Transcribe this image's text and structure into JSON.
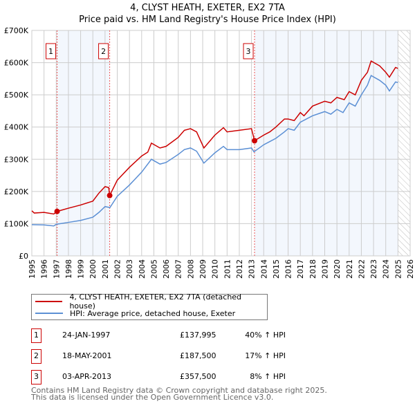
{
  "chart_data": {
    "type": "line",
    "title": "4, CLYST HEATH, EXETER, EX2 7TA",
    "subtitle": "Price paid vs. HM Land Registry's House Price Index (HPI)",
    "xlim": [
      1995,
      2026
    ],
    "ylim": [
      0,
      700000
    ],
    "x_ticks": [
      "1995",
      "1996",
      "1997",
      "1998",
      "1999",
      "2000",
      "2001",
      "2002",
      "2003",
      "2004",
      "2005",
      "2006",
      "2007",
      "2008",
      "2009",
      "2010",
      "2011",
      "2012",
      "2013",
      "2014",
      "2015",
      "2016",
      "2017",
      "2018",
      "2019",
      "2020",
      "2021",
      "2022",
      "2023",
      "2024",
      "2025",
      "2026"
    ],
    "y_ticks": [
      {
        "v": 0,
        "label": "£0"
      },
      {
        "v": 100000,
        "label": "£100K"
      },
      {
        "v": 200000,
        "label": "£200K"
      },
      {
        "v": 300000,
        "label": "£300K"
      },
      {
        "v": 400000,
        "label": "£400K"
      },
      {
        "v": 500000,
        "label": "£500K"
      },
      {
        "v": 600000,
        "label": "£600K"
      },
      {
        "v": 700000,
        "label": "£700K"
      }
    ],
    "grid": true,
    "series": [
      {
        "name": "4, CLYST HEATH, EXETER, EX2 7TA (detached house)",
        "color": "#cc0000",
        "points": [
          [
            1995,
            140
          ],
          [
            1995.2,
            133
          ],
          [
            1996,
            135
          ],
          [
            1996.8,
            130
          ],
          [
            1997.07,
            138
          ],
          [
            1998,
            148
          ],
          [
            1999,
            158
          ],
          [
            2000,
            170
          ],
          [
            2000.5,
            195
          ],
          [
            2001,
            215
          ],
          [
            2001.3,
            212
          ],
          [
            2001.38,
            187.5
          ],
          [
            2002,
            235
          ],
          [
            2003,
            275
          ],
          [
            2004,
            310
          ],
          [
            2004.5,
            322
          ],
          [
            2004.8,
            350
          ],
          [
            2005.5,
            335
          ],
          [
            2006,
            340
          ],
          [
            2007,
            368
          ],
          [
            2007.5,
            390
          ],
          [
            2008,
            395
          ],
          [
            2008.5,
            385
          ],
          [
            2009.1,
            335
          ],
          [
            2010,
            375
          ],
          [
            2010.7,
            398
          ],
          [
            2011,
            385
          ],
          [
            2012,
            390
          ],
          [
            2013,
            395
          ],
          [
            2013.25,
            357.5
          ],
          [
            2014,
            375
          ],
          [
            2014.5,
            385
          ],
          [
            2015,
            400
          ],
          [
            2015.7,
            425
          ],
          [
            2016,
            425
          ],
          [
            2016.5,
            420
          ],
          [
            2017,
            445
          ],
          [
            2017.3,
            435
          ],
          [
            2018,
            465
          ],
          [
            2019,
            480
          ],
          [
            2019.5,
            475
          ],
          [
            2020,
            492
          ],
          [
            2020.6,
            485
          ],
          [
            2021,
            510
          ],
          [
            2021.5,
            500
          ],
          [
            2022,
            545
          ],
          [
            2022.5,
            570
          ],
          [
            2022.8,
            605
          ],
          [
            2023.5,
            590
          ],
          [
            2024,
            570
          ],
          [
            2024.3,
            555
          ],
          [
            2024.8,
            585
          ],
          [
            2025,
            582
          ]
        ]
      },
      {
        "name": "HPI: Average price, detached house, Exeter",
        "color": "#5b8fd4",
        "points": [
          [
            1995,
            97
          ],
          [
            1996,
            96
          ],
          [
            1996.8,
            93
          ],
          [
            1997,
            98
          ],
          [
            1998,
            104
          ],
          [
            1999,
            110
          ],
          [
            2000,
            120
          ],
          [
            2000.5,
            135
          ],
          [
            2001,
            153
          ],
          [
            2001.4,
            150
          ],
          [
            2002,
            185
          ],
          [
            2003,
            220
          ],
          [
            2003.5,
            240
          ],
          [
            2004,
            260
          ],
          [
            2004.8,
            300
          ],
          [
            2005.5,
            285
          ],
          [
            2006,
            290
          ],
          [
            2007,
            315
          ],
          [
            2007.5,
            330
          ],
          [
            2008,
            335
          ],
          [
            2008.5,
            325
          ],
          [
            2009.1,
            288
          ],
          [
            2010,
            320
          ],
          [
            2010.7,
            340
          ],
          [
            2011,
            330
          ],
          [
            2012,
            330
          ],
          [
            2013,
            335
          ],
          [
            2013.2,
            323
          ],
          [
            2014,
            345
          ],
          [
            2014.5,
            355
          ],
          [
            2015,
            365
          ],
          [
            2015.7,
            385
          ],
          [
            2016,
            395
          ],
          [
            2016.5,
            390
          ],
          [
            2017,
            415
          ],
          [
            2018,
            435
          ],
          [
            2019,
            448
          ],
          [
            2019.5,
            440
          ],
          [
            2020,
            455
          ],
          [
            2020.5,
            445
          ],
          [
            2021,
            475
          ],
          [
            2021.5,
            465
          ],
          [
            2022,
            500
          ],
          [
            2022.5,
            530
          ],
          [
            2022.8,
            560
          ],
          [
            2023.5,
            545
          ],
          [
            2024,
            530
          ],
          [
            2024.3,
            512
          ],
          [
            2024.8,
            540
          ],
          [
            2025,
            538
          ]
        ]
      }
    ],
    "sales": [
      {
        "n": "1",
        "x": 1997.07,
        "price": 137995,
        "date": "24-JAN-1997",
        "price_label": "£137,995",
        "hpi": "40% ↑ HPI"
      },
      {
        "n": "2",
        "x": 2001.38,
        "price": 187500,
        "date": "18-MAY-2001",
        "price_label": "£187,500",
        "hpi": "17% ↑ HPI"
      },
      {
        "n": "3",
        "x": 2013.25,
        "price": 357500,
        "date": "03-APR-2013",
        "price_label": "£357,500",
        "hpi": "8% ↑ HPI"
      }
    ],
    "data_end": 2025.0
  },
  "footer": {
    "line1": "Contains HM Land Registry data © Crown copyright and database right 2025.",
    "line2": "This data is licensed under the Open Government Licence v3.0."
  }
}
